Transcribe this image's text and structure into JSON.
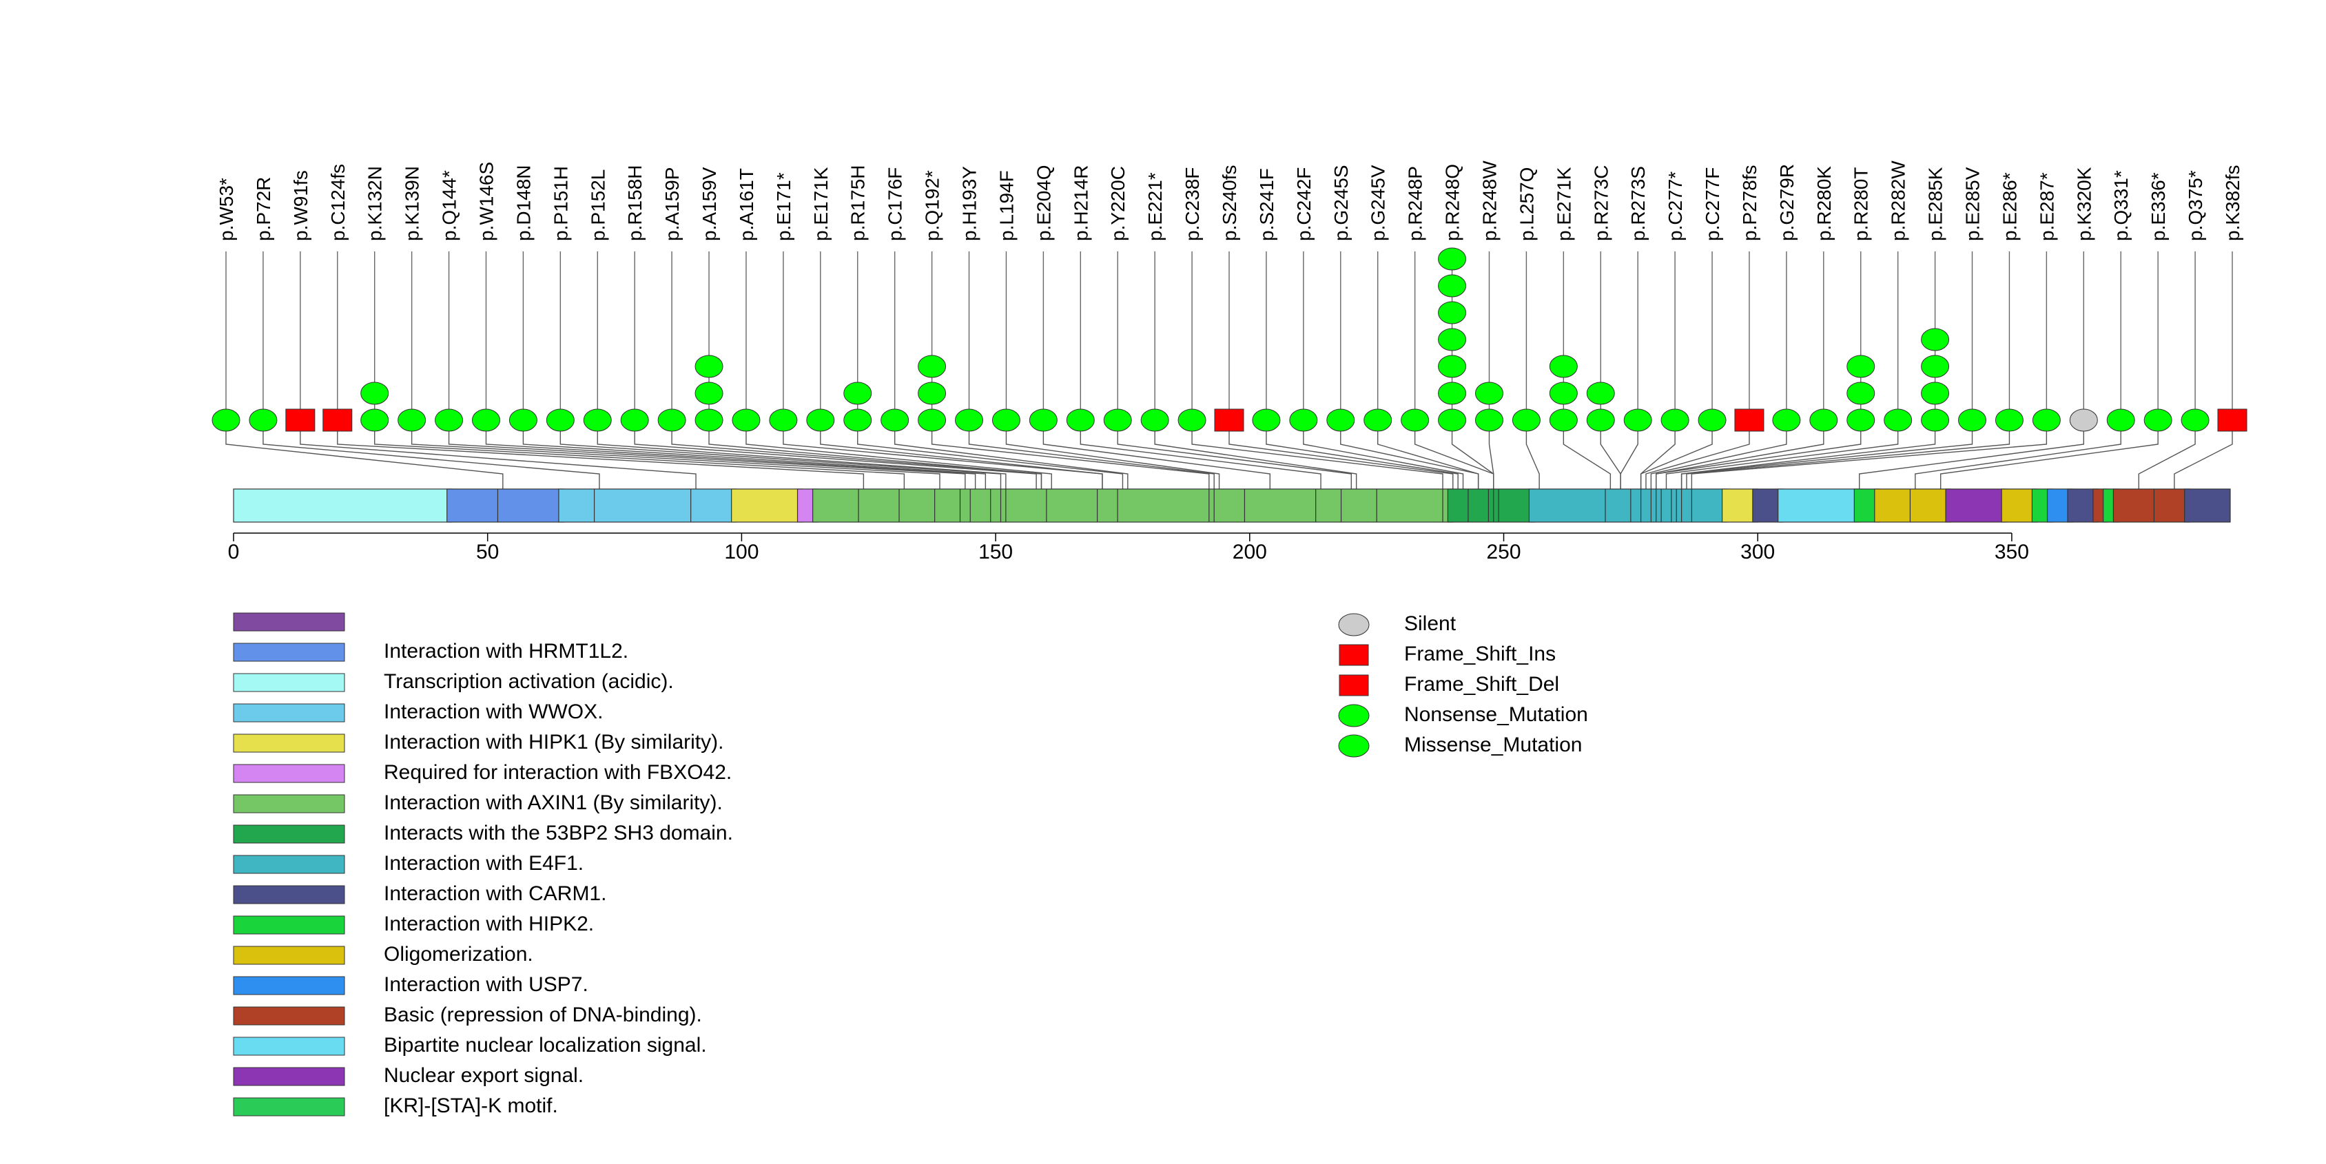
{
  "chart_data": {
    "type": "lollipop",
    "protein_length": 393,
    "x_ticks": [
      0,
      50,
      100,
      150,
      200,
      250,
      300,
      350
    ],
    "mutations": [
      {
        "label": "p.W53*",
        "pos": 1,
        "count": 1,
        "type": "Nonsense_Mutation"
      },
      {
        "label": "p.P72R",
        "pos": 6,
        "count": 1,
        "type": "Missense_Mutation"
      },
      {
        "label": "p.W91fs",
        "pos": 13,
        "count": 1,
        "type": "Frame_Shift_Del"
      },
      {
        "label": "p.C124fs",
        "pos": 20,
        "count": 1,
        "type": "Frame_Shift_Del"
      },
      {
        "label": "p.K132N",
        "pos": 28,
        "count": 2,
        "type": "Missense_Mutation"
      },
      {
        "label": "p.K139N",
        "pos": 35,
        "count": 1,
        "type": "Missense_Mutation"
      },
      {
        "label": "p.Q144*",
        "pos": 43,
        "count": 1,
        "type": "Nonsense_Mutation"
      },
      {
        "label": "p.W146S",
        "pos": 50,
        "count": 1,
        "type": "Missense_Mutation"
      },
      {
        "label": "p.D148N",
        "pos": 57,
        "count": 1,
        "type": "Missense_Mutation"
      },
      {
        "label": "p.P151H",
        "pos": 65,
        "count": 1,
        "type": "Missense_Mutation"
      },
      {
        "label": "p.P152L",
        "pos": 72,
        "count": 1,
        "type": "Missense_Mutation"
      },
      {
        "label": "p.R158H",
        "pos": 79,
        "count": 1,
        "type": "Missense_Mutation"
      },
      {
        "label": "p.A159P",
        "pos": 87,
        "count": 1,
        "type": "Missense_Mutation"
      },
      {
        "label": "p.A159V",
        "pos": 94,
        "count": 3,
        "type": "Missense_Mutation"
      },
      {
        "label": "p.A161T",
        "pos": 101,
        "count": 1,
        "type": "Missense_Mutation"
      },
      {
        "label": "p.E171*",
        "pos": 108,
        "count": 1,
        "type": "Nonsense_Mutation"
      },
      {
        "label": "p.E171K",
        "pos": 116,
        "count": 1,
        "type": "Missense_Mutation"
      },
      {
        "label": "p.R175H",
        "pos": 123,
        "count": 2,
        "type": "Missense_Mutation"
      },
      {
        "label": "p.C176F",
        "pos": 130,
        "count": 1,
        "type": "Missense_Mutation"
      },
      {
        "label": "p.Q192*",
        "pos": 138,
        "count": 3,
        "type": "Nonsense_Mutation"
      },
      {
        "label": "p.H193Y",
        "pos": 145,
        "count": 1,
        "type": "Missense_Mutation"
      },
      {
        "label": "p.L194F",
        "pos": 152,
        "count": 1,
        "type": "Missense_Mutation"
      },
      {
        "label": "p.E204Q",
        "pos": 160,
        "count": 1,
        "type": "Missense_Mutation"
      },
      {
        "label": "p.H214R",
        "pos": 167,
        "count": 1,
        "type": "Missense_Mutation"
      },
      {
        "label": "p.Y220C",
        "pos": 174,
        "count": 1,
        "type": "Missense_Mutation"
      },
      {
        "label": "p.E221*",
        "pos": 181,
        "count": 1,
        "type": "Nonsense_Mutation"
      },
      {
        "label": "p.C238F",
        "pos": 189,
        "count": 1,
        "type": "Missense_Mutation"
      },
      {
        "label": "p.S240fs",
        "pos": 196,
        "count": 1,
        "type": "Frame_Shift_Del"
      },
      {
        "label": "p.S241F",
        "pos": 203,
        "count": 1,
        "type": "Missense_Mutation"
      },
      {
        "label": "p.C242F",
        "pos": 211,
        "count": 1,
        "type": "Missense_Mutation"
      },
      {
        "label": "p.G245S",
        "pos": 218,
        "count": 1,
        "type": "Missense_Mutation"
      },
      {
        "label": "p.G245V",
        "pos": 225,
        "count": 1,
        "type": "Missense_Mutation"
      },
      {
        "label": "p.R248P",
        "pos": 232,
        "count": 1,
        "type": "Missense_Mutation"
      },
      {
        "label": "p.R248Q",
        "pos": 240,
        "count": 7,
        "type": "Missense_Mutation"
      },
      {
        "label": "p.R248W",
        "pos": 247,
        "count": 2,
        "type": "Missense_Mutation"
      },
      {
        "label": "p.L257Q",
        "pos": 254,
        "count": 1,
        "type": "Missense_Mutation"
      },
      {
        "label": "p.E271K",
        "pos": 262,
        "count": 3,
        "type": "Missense_Mutation"
      },
      {
        "label": "p.R273C",
        "pos": 269,
        "count": 2,
        "type": "Missense_Mutation"
      },
      {
        "label": "p.R273S",
        "pos": 276,
        "count": 1,
        "type": "Missense_Mutation"
      },
      {
        "label": "p.C277*",
        "pos": 283,
        "count": 1,
        "type": "Nonsense_Mutation"
      },
      {
        "label": "p.C277F",
        "pos": 291,
        "count": 1,
        "type": "Missense_Mutation"
      },
      {
        "label": "p.P278fs",
        "pos": 298,
        "count": 1,
        "type": "Frame_Shift_Del"
      },
      {
        "label": "p.G279R",
        "pos": 305,
        "count": 1,
        "type": "Missense_Mutation"
      },
      {
        "label": "p.R280K",
        "pos": 313,
        "count": 1,
        "type": "Missense_Mutation"
      },
      {
        "label": "p.R280T",
        "pos": 320,
        "count": 3,
        "type": "Missense_Mutation"
      },
      {
        "label": "p.R282W",
        "pos": 327,
        "count": 1,
        "type": "Missense_Mutation"
      },
      {
        "label": "p.E285K",
        "pos": 335,
        "count": 4,
        "type": "Missense_Mutation"
      },
      {
        "label": "p.E285V",
        "pos": 342,
        "count": 1,
        "type": "Missense_Mutation"
      },
      {
        "label": "p.E286*",
        "pos": 349,
        "count": 1,
        "type": "Nonsense_Mutation"
      },
      {
        "label": "p.E287*",
        "pos": 356,
        "count": 1,
        "type": "Nonsense_Mutation"
      },
      {
        "label": "p.K320K",
        "pos": 364,
        "count": 1,
        "type": "Silent"
      },
      {
        "label": "p.Q331*",
        "pos": 371,
        "count": 1,
        "type": "Nonsense_Mutation"
      },
      {
        "label": "p.E336*",
        "pos": 378,
        "count": 1,
        "type": "Nonsense_Mutation"
      },
      {
        "label": "p.Q375*",
        "pos": 386,
        "count": 1,
        "type": "Nonsense_Mutation"
      },
      {
        "label": "p.K382fs",
        "pos": 393,
        "count": 1,
        "type": "Frame_Shift_Del"
      }
    ],
    "connectors": [
      53,
      72,
      91,
      124,
      132,
      139,
      144,
      146,
      148,
      151,
      152,
      158,
      159,
      159,
      161,
      171,
      171,
      175,
      176,
      192,
      193,
      194,
      204,
      214,
      220,
      221,
      238,
      240,
      241,
      242,
      245,
      245,
      248,
      248,
      248,
      257,
      271,
      273,
      273,
      277,
      277,
      278,
      279,
      280,
      280,
      282,
      285,
      285,
      286,
      287,
      320,
      331,
      336,
      375,
      382
    ],
    "domains": [
      {
        "start": 1,
        "end": 43,
        "color": "#a4f9f4",
        "dividers": []
      },
      {
        "start": 43,
        "end": 65,
        "color": "#6191e9",
        "dividers": [
          52
        ]
      },
      {
        "start": 65,
        "end": 99,
        "color": "#6ccbea",
        "dividers": [
          71,
          90
        ]
      },
      {
        "start": 99,
        "end": 112,
        "color": "#e6e04c",
        "dividers": []
      },
      {
        "start": 112,
        "end": 115,
        "color": "#d485f1",
        "dividers": []
      },
      {
        "start": 115,
        "end": 240,
        "color": "#75c665",
        "dividers": [
          123,
          131,
          138,
          143,
          145,
          149,
          151,
          152,
          160,
          170,
          174,
          192,
          193,
          199,
          213,
          218,
          225,
          238
        ]
      },
      {
        "start": 240,
        "end": 256,
        "color": "#22a64e",
        "dividers": [
          243,
          247,
          248,
          249
        ]
      },
      {
        "start": 256,
        "end": 294,
        "color": "#40b6c3",
        "dividers": [
          270,
          275,
          277,
          279,
          280,
          281,
          283,
          284,
          285,
          287
        ]
      },
      {
        "start": 294,
        "end": 300,
        "color": "#e6e04c",
        "dividers": []
      },
      {
        "start": 300,
        "end": 305,
        "color": "#4b4f8a",
        "dividers": []
      },
      {
        "start": 305,
        "end": 320,
        "color": "#6adcf2",
        "dividers": []
      },
      {
        "start": 320,
        "end": 324,
        "color": "#19d43a",
        "dividers": []
      },
      {
        "start": 324,
        "end": 338,
        "color": "#d9c10e",
        "dividers": [
          330
        ]
      },
      {
        "start": 338,
        "end": 349,
        "color": "#8c36b4",
        "dividers": []
      },
      {
        "start": 349,
        "end": 355,
        "color": "#d9c10e",
        "dividers": []
      },
      {
        "start": 355,
        "end": 358,
        "color": "#19d43a",
        "dividers": []
      },
      {
        "start": 358,
        "end": 362,
        "color": "#2f8ff0",
        "dividers": []
      },
      {
        "start": 362,
        "end": 367,
        "color": "#4b4f8a",
        "dividers": []
      },
      {
        "start": 367,
        "end": 369,
        "color": "#b04127",
        "dividers": []
      },
      {
        "start": 369,
        "end": 371,
        "color": "#19d43a",
        "dividers": []
      },
      {
        "start": 371,
        "end": 385,
        "color": "#b04127",
        "dividers": [
          378
        ]
      },
      {
        "start": 385,
        "end": 393,
        "color": "#4b4f8a",
        "dividers": []
      }
    ],
    "domain_legend": [
      {
        "label": "",
        "color": "#7f4a9f"
      },
      {
        "label": "Interaction with HRMT1L2.",
        "color": "#6191e9"
      },
      {
        "label": "Transcription activation (acidic).",
        "color": "#a4f9f4"
      },
      {
        "label": "Interaction with WWOX.",
        "color": "#6ccbea"
      },
      {
        "label": "Interaction with HIPK1 (By similarity).",
        "color": "#e6e04c"
      },
      {
        "label": "Required for interaction with FBXO42.",
        "color": "#d485f1"
      },
      {
        "label": "Interaction with AXIN1 (By similarity).",
        "color": "#75c665"
      },
      {
        "label": "Interacts with the 53BP2 SH3 domain.",
        "color": "#22a64e"
      },
      {
        "label": "Interaction with E4F1.",
        "color": "#40b6c3"
      },
      {
        "label": "Interaction with CARM1.",
        "color": "#4b4f8a"
      },
      {
        "label": "Interaction with HIPK2.",
        "color": "#19d43a"
      },
      {
        "label": "Oligomerization.",
        "color": "#d9c10e"
      },
      {
        "label": "Interaction with USP7.",
        "color": "#2f8ff0"
      },
      {
        "label": "Basic (repression of DNA-binding).",
        "color": "#b04127"
      },
      {
        "label": "Bipartite nuclear localization signal.",
        "color": "#6adcf2"
      },
      {
        "label": "Nuclear export signal.",
        "color": "#8c36b4"
      },
      {
        "label": "[KR]-[STA]-K motif.",
        "color": "#2acc57"
      }
    ],
    "mutation_legend": [
      {
        "label": "Silent",
        "shape": "ellipse",
        "color": "#cccccc"
      },
      {
        "label": "Frame_Shift_Ins",
        "shape": "rect",
        "color": "#ff0000"
      },
      {
        "label": "Frame_Shift_Del",
        "shape": "rect",
        "color": "#ff0000"
      },
      {
        "label": "Nonsense_Mutation",
        "shape": "ellipse",
        "color": "#00ff00"
      },
      {
        "label": "Missense_Mutation",
        "shape": "ellipse",
        "color": "#00ff00"
      }
    ],
    "type_colors": {
      "Silent": "#cccccc",
      "Frame_Shift_Ins": "#ff0000",
      "Frame_Shift_Del": "#ff0000",
      "Nonsense_Mutation": "#00ff00",
      "Missense_Mutation": "#00ff00"
    }
  }
}
